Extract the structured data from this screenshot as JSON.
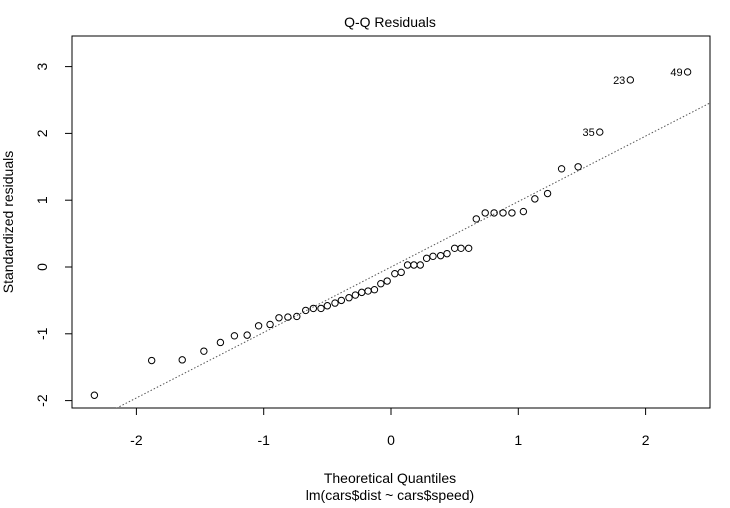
{
  "chart_data": {
    "type": "scatter",
    "title": "Q-Q Residuals",
    "xlabel": "Theoretical Quantiles",
    "subtitle": "lm(cars$dist ~ cars$speed)",
    "ylabel": "Standardized residuals",
    "xlim": [
      -2.5,
      2.5
    ],
    "ylim": [
      -2.2,
      3.5
    ],
    "xticks": [
      -2,
      -1,
      0,
      1,
      2
    ],
    "yticks": [
      -2,
      -1,
      0,
      1,
      2,
      3
    ],
    "xtick_labels": [
      "-2",
      "-1",
      "0",
      "1",
      "2"
    ],
    "ytick_labels": [
      "-2",
      "-1",
      "0",
      "1",
      "2",
      "3"
    ],
    "reference_line": {
      "style": "dotted",
      "intercept": 0.0,
      "slope": 0.98
    },
    "points": [
      {
        "x": -2.33,
        "y": -1.92
      },
      {
        "x": -1.88,
        "y": -1.4
      },
      {
        "x": -1.64,
        "y": -1.39
      },
      {
        "x": -1.47,
        "y": -1.26
      },
      {
        "x": -1.34,
        "y": -1.13
      },
      {
        "x": -1.23,
        "y": -1.03
      },
      {
        "x": -1.13,
        "y": -1.02
      },
      {
        "x": -1.04,
        "y": -0.88
      },
      {
        "x": -0.95,
        "y": -0.86
      },
      {
        "x": -0.88,
        "y": -0.76
      },
      {
        "x": -0.81,
        "y": -0.75
      },
      {
        "x": -0.74,
        "y": -0.74
      },
      {
        "x": -0.67,
        "y": -0.65
      },
      {
        "x": -0.61,
        "y": -0.62
      },
      {
        "x": -0.55,
        "y": -0.62
      },
      {
        "x": -0.5,
        "y": -0.58
      },
      {
        "x": -0.44,
        "y": -0.54
      },
      {
        "x": -0.39,
        "y": -0.5
      },
      {
        "x": -0.33,
        "y": -0.46
      },
      {
        "x": -0.28,
        "y": -0.42
      },
      {
        "x": -0.23,
        "y": -0.38
      },
      {
        "x": -0.18,
        "y": -0.36
      },
      {
        "x": -0.13,
        "y": -0.34
      },
      {
        "x": -0.08,
        "y": -0.25
      },
      {
        "x": -0.03,
        "y": -0.21
      },
      {
        "x": 0.03,
        "y": -0.1
      },
      {
        "x": 0.08,
        "y": -0.08
      },
      {
        "x": 0.13,
        "y": 0.03
      },
      {
        "x": 0.18,
        "y": 0.03
      },
      {
        "x": 0.23,
        "y": 0.03
      },
      {
        "x": 0.28,
        "y": 0.13
      },
      {
        "x": 0.33,
        "y": 0.16
      },
      {
        "x": 0.39,
        "y": 0.17
      },
      {
        "x": 0.44,
        "y": 0.2
      },
      {
        "x": 0.5,
        "y": 0.28
      },
      {
        "x": 0.55,
        "y": 0.28
      },
      {
        "x": 0.61,
        "y": 0.28
      },
      {
        "x": 0.67,
        "y": 0.72
      },
      {
        "x": 0.74,
        "y": 0.81
      },
      {
        "x": 0.81,
        "y": 0.81
      },
      {
        "x": 0.88,
        "y": 0.81
      },
      {
        "x": 0.95,
        "y": 0.81
      },
      {
        "x": 1.04,
        "y": 0.83
      },
      {
        "x": 1.13,
        "y": 1.02
      },
      {
        "x": 1.23,
        "y": 1.1
      },
      {
        "x": 1.34,
        "y": 1.47
      },
      {
        "x": 1.47,
        "y": 1.5
      },
      {
        "x": 1.64,
        "y": 2.02,
        "label": "35"
      },
      {
        "x": 1.88,
        "y": 2.8,
        "label": "23"
      },
      {
        "x": 2.33,
        "y": 2.92,
        "label": "49"
      }
    ]
  }
}
